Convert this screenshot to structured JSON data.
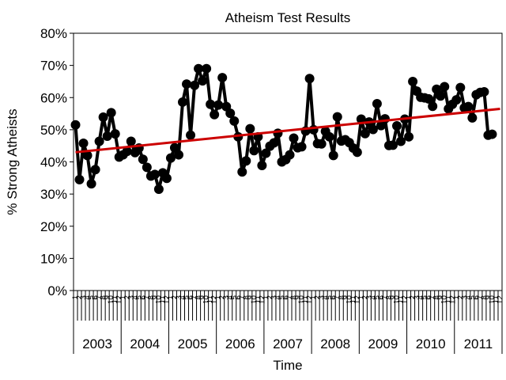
{
  "chart_data": {
    "type": "line",
    "title": "Atheism Test Results",
    "xlabel": "Time",
    "ylabel": "% Strong Atheists",
    "ylim": [
      0,
      80
    ],
    "y_ticks": [
      "0%",
      "10%",
      "20%",
      "30%",
      "40%",
      "50%",
      "60%",
      "70%",
      "80%"
    ],
    "y_tick_values": [
      0,
      10,
      20,
      30,
      40,
      50,
      60,
      70,
      80
    ],
    "years": [
      "2003",
      "2004",
      "2005",
      "2006",
      "2007",
      "2008",
      "2009",
      "2010",
      "2011"
    ],
    "months_shown": [
      "1",
      "2",
      "3",
      "4",
      "5",
      "6",
      "7",
      "8",
      "9",
      "10",
      "11",
      "12"
    ],
    "grid": false,
    "series": [
      {
        "color": "#000000",
        "marker": "circle",
        "x_start": "2003-01",
        "values": [
          51.5,
          34.5,
          45.8,
          42.0,
          33.2,
          37.6,
          46.4,
          53.9,
          48.0,
          55.3,
          48.7,
          41.5,
          42.2,
          43.3,
          46.4,
          42.9,
          44.3,
          40.8,
          38.3,
          35.6,
          36.1,
          31.5,
          36.6,
          34.9,
          41.2,
          44.4,
          42.2,
          58.6,
          64.2,
          48.3,
          63.8,
          69.0,
          65.2,
          69.0,
          57.9,
          54.7,
          57.7,
          66.2,
          57.2,
          55.1,
          52.7,
          47.8,
          36.9,
          40.3,
          50.3,
          43.5,
          47.8,
          38.9,
          42.7,
          44.9,
          45.9,
          48.9,
          40.0,
          40.7,
          42.2,
          47.4,
          44.4,
          44.7,
          49.6,
          65.9,
          50.0,
          45.7,
          45.6,
          49.5,
          47.8,
          42.0,
          54.0,
          46.5,
          46.9,
          46.0,
          44.3,
          43.0,
          53.3,
          48.8,
          52.4,
          50.1,
          58.1,
          51.3,
          53.4,
          45.1,
          45.2,
          51.2,
          46.4,
          53.3,
          47.8,
          65.0,
          62.0,
          60.1,
          59.9,
          59.6,
          57.3,
          62.6,
          60.5,
          63.4,
          56.5,
          57.9,
          59.3,
          63.1,
          56.8,
          57.2,
          53.7,
          60.9,
          61.6,
          61.8,
          48.3,
          48.6
        ]
      },
      {
        "color": "#cc0000",
        "kind": "trendline",
        "x": [
          "2003-01",
          "2011-12"
        ],
        "values": [
          43.0,
          56.5
        ]
      }
    ]
  }
}
